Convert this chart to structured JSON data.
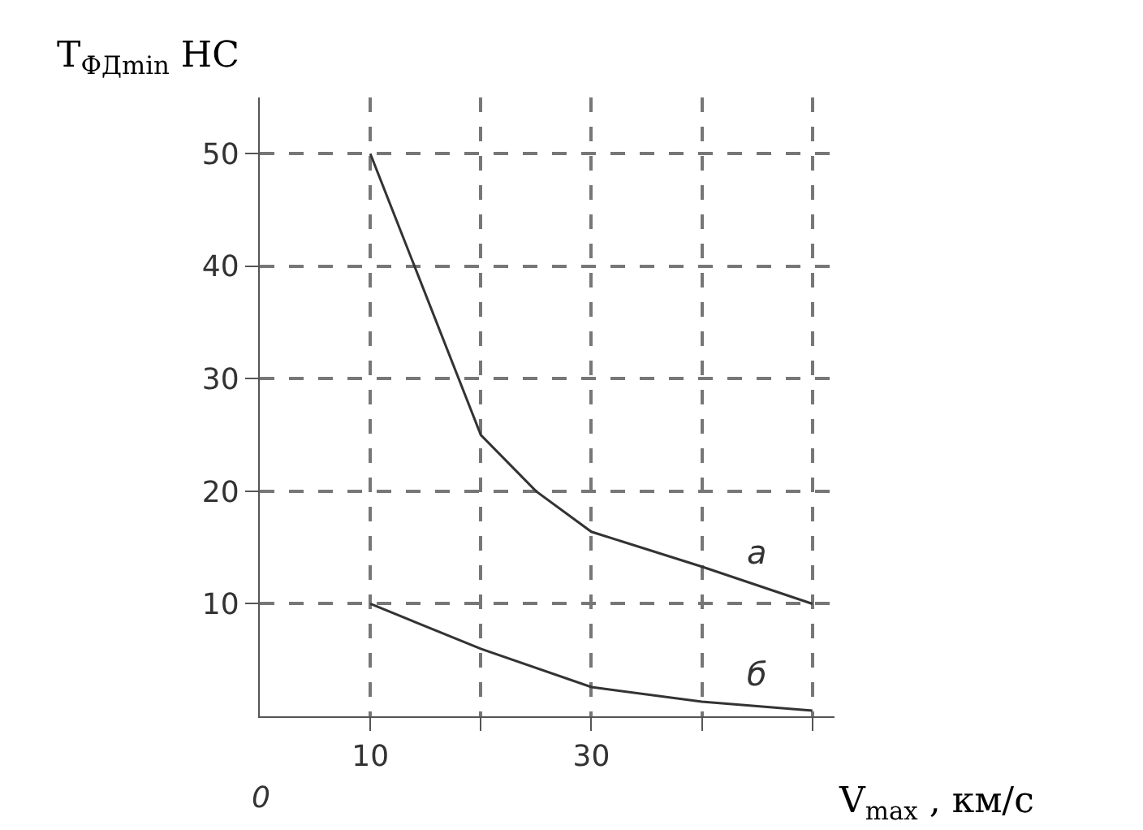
{
  "chart_data": {
    "type": "line",
    "xlabel": "V$_{max}$ , км/с",
    "ylabel": "T$_{ФДmin}$ НС",
    "x": [
      10,
      20,
      25,
      30,
      40,
      50
    ],
    "series": [
      {
        "name": "а",
        "color": "#333333",
        "values": [
          50,
          25,
          20,
          16.4,
          13.3,
          10
        ]
      },
      {
        "name": "б",
        "color": "#333333",
        "x": [
          10,
          20,
          30,
          40,
          50
        ],
        "values": [
          10,
          6,
          2.6,
          1.3,
          0.5
        ]
      }
    ],
    "xlim": [
      0,
      52
    ],
    "ylim": [
      0,
      55
    ],
    "xticks": [
      10,
      {
        "value": 20,
        "label": null
      },
      30,
      {
        "value": 40,
        "label": null
      },
      {
        "value": 50,
        "label": null
      }
    ],
    "yticks": [
      10,
      20,
      30,
      40,
      50
    ],
    "grid": true,
    "line_style": "solid",
    "marker": "none",
    "annotations": [
      "0"
    ]
  }
}
